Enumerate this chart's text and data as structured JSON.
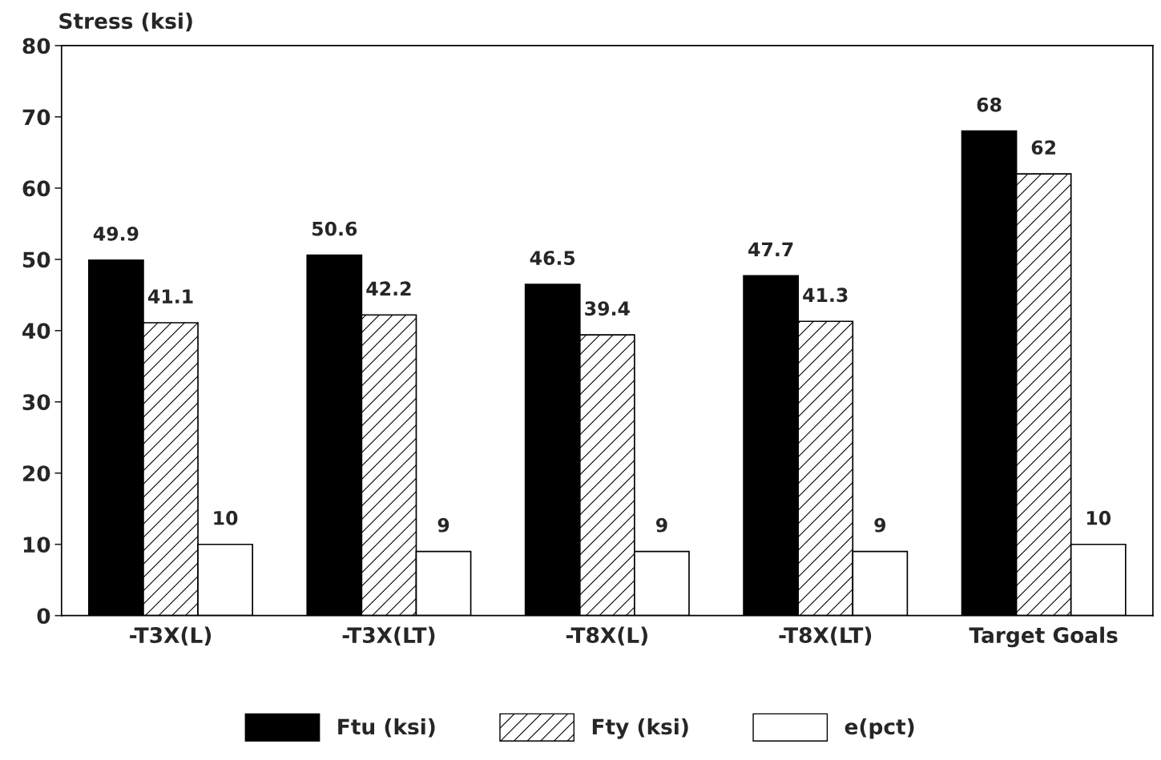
{
  "chart_data": {
    "type": "bar",
    "ylabel": "Stress (ksi)",
    "categories": [
      "-T3X(L)",
      "-T3X(LT)",
      "-T8X(L)",
      "-T8X(LT)",
      "Target Goals"
    ],
    "series": [
      {
        "name": "Ftu (ksi)",
        "color": "#000000",
        "values": [
          49.9,
          50.6,
          46.5,
          47.7,
          68
        ]
      },
      {
        "name": "Fty (ksi)",
        "color": "#000000",
        "values": [
          41.1,
          42.2,
          39.4,
          41.3,
          62
        ]
      },
      {
        "name": "e(pct)",
        "color": "#ffffff",
        "values": [
          10,
          9,
          9,
          9,
          10
        ]
      }
    ],
    "ylim": [
      0,
      80
    ],
    "yticks": [
      0,
      10,
      20,
      30,
      40,
      50,
      60,
      70,
      80
    ],
    "data_labels": true,
    "legend": "bottom",
    "grid": false
  }
}
